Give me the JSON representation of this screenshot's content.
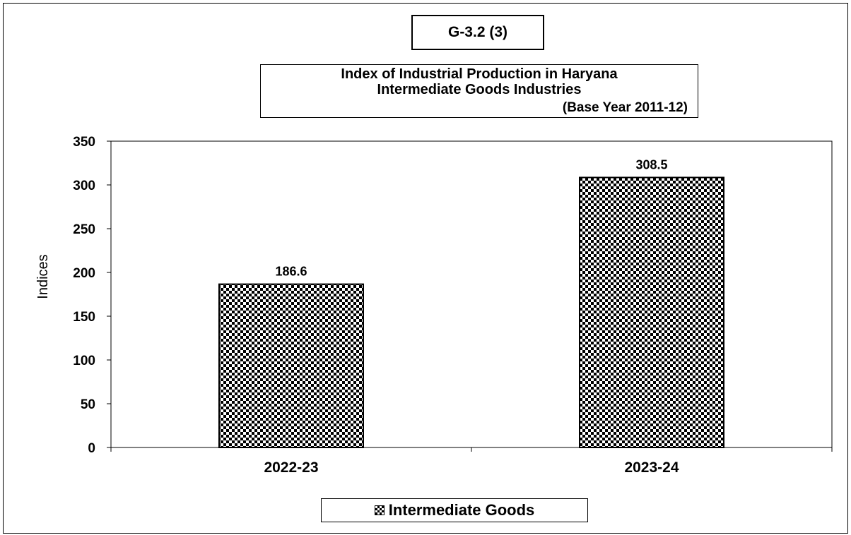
{
  "figure_label": "G-3.2 (3)",
  "chart_data": {
    "type": "bar",
    "title": "Index of Industrial Production in Haryana",
    "subtitle": "Intermediate Goods Industries",
    "base_note": "(Base Year 2011-12)",
    "categories": [
      "2022-23",
      "2023-24"
    ],
    "series": [
      {
        "name": "Intermediate Goods",
        "values": [
          186.6,
          308.5
        ],
        "data_labels": [
          "186.6",
          "308.5"
        ]
      }
    ],
    "ylabel": "Indices",
    "xlabel": "",
    "ylim": [
      0,
      350
    ],
    "yticks": [
      "0",
      "50",
      "100",
      "150",
      "200",
      "250",
      "300",
      "350"
    ],
    "grid": false,
    "legend_position": "bottom",
    "fill": "black-white checkerboard pattern"
  }
}
